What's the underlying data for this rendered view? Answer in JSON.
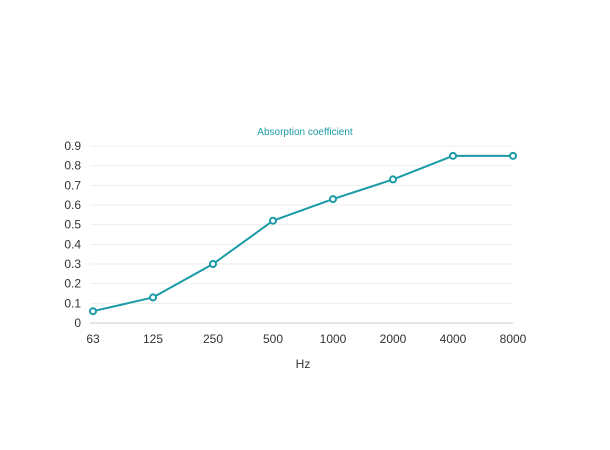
{
  "chart_data": {
    "type": "line",
    "title": "Absorption coefficient",
    "xlabel": "Hz",
    "ylabel": "",
    "categories": [
      "63",
      "125",
      "250",
      "500",
      "1000",
      "2000",
      "4000",
      "8000"
    ],
    "series": [
      {
        "values": [
          0.06,
          0.13,
          0.3,
          0.52,
          0.63,
          0.73,
          0.85,
          0.85
        ]
      }
    ],
    "ylim": [
      0,
      0.9
    ],
    "yticks": [
      "0",
      "0.1",
      "0.2",
      "0.3",
      "0.4",
      "0.5",
      "0.6",
      "0.7",
      "0.8",
      "0.9"
    ],
    "grid": true,
    "legend": "none",
    "colors": {
      "series": "#1a9aa6",
      "title": "#1a9aa6",
      "grid": "#eeeeee",
      "axis": "#cccccc",
      "text": "#333333"
    }
  }
}
